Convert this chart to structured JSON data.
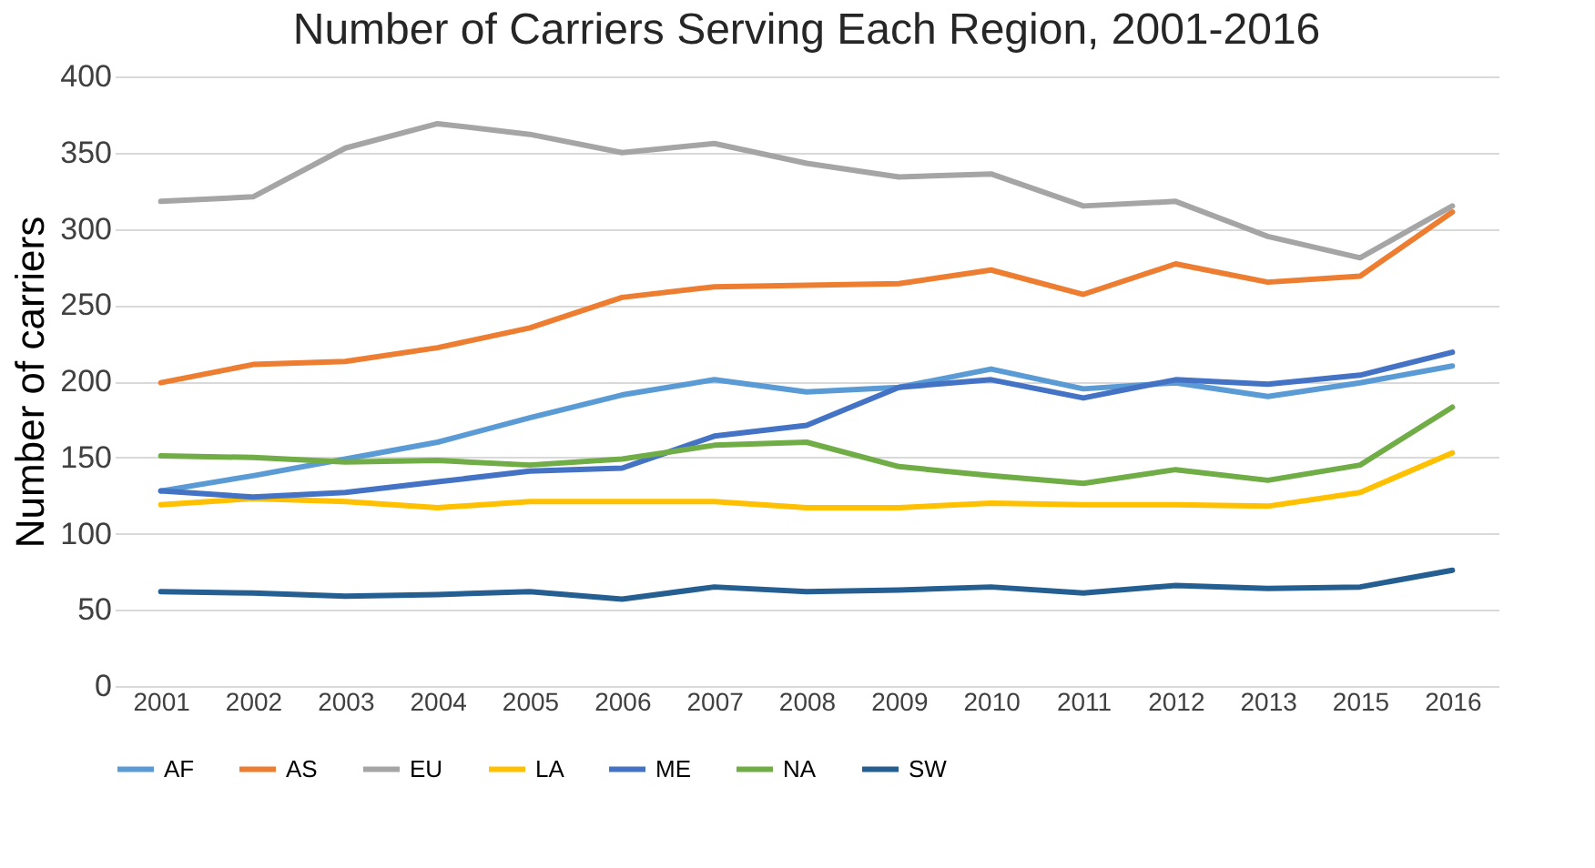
{
  "chart_data": {
    "type": "line",
    "title": "Number of Carriers Serving Each Region, 2001-2016",
    "ylabel": "Number of carriers",
    "categories": [
      "2001",
      "2002",
      "2003",
      "2004",
      "2005",
      "2006",
      "2007",
      "2008",
      "2009",
      "2010",
      "2011",
      "2012",
      "2013",
      "2015",
      "2016"
    ],
    "series": [
      {
        "name": "AF",
        "color": "#5b9bd5",
        "values": [
          128,
          138,
          149,
          160,
          176,
          191,
          201,
          193,
          196,
          208,
          195,
          199,
          190,
          199,
          210
        ]
      },
      {
        "name": "AS",
        "color": "#ed7d31",
        "values": [
          199,
          211,
          213,
          222,
          235,
          255,
          262,
          263,
          264,
          273,
          257,
          277,
          265,
          269,
          311
        ]
      },
      {
        "name": "EU",
        "color": "#a5a5a5",
        "values": [
          318,
          321,
          353,
          369,
          362,
          350,
          356,
          343,
          334,
          336,
          315,
          318,
          295,
          281,
          315
        ]
      },
      {
        "name": "LA",
        "color": "#ffc000",
        "values": [
          119,
          123,
          121,
          117,
          121,
          121,
          121,
          117,
          117,
          120,
          119,
          119,
          118,
          127,
          153
        ]
      },
      {
        "name": "ME",
        "color": "#4472c4",
        "values": [
          128,
          124,
          127,
          134,
          141,
          143,
          164,
          171,
          196,
          201,
          189,
          201,
          198,
          204,
          219
        ]
      },
      {
        "name": "NA",
        "color": "#70ad47",
        "values": [
          151,
          150,
          147,
          148,
          145,
          149,
          158,
          160,
          144,
          138,
          133,
          142,
          135,
          145,
          183
        ]
      },
      {
        "name": "SW",
        "color": "#255e91",
        "values": [
          62,
          61,
          59,
          60,
          62,
          57,
          65,
          62,
          63,
          65,
          61,
          66,
          64,
          65,
          76
        ]
      }
    ],
    "ylim": [
      0,
      400
    ],
    "yticks": [
      0,
      50,
      100,
      150,
      200,
      250,
      300,
      350,
      400
    ],
    "grid": "y",
    "legend": "bottom",
    "marker": "none",
    "line_style": "solid"
  }
}
